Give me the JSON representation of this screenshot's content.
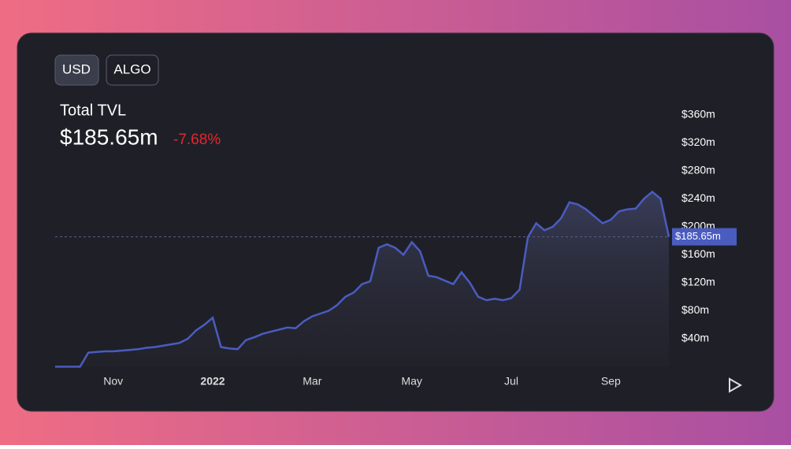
{
  "ui": {
    "buttons": [
      "USD",
      "ALGO"
    ]
  },
  "chart_data": {
    "type": "area",
    "title": "Total TVL",
    "current_value_label": "$185.65m",
    "change_label": "-7.68%",
    "categories": [
      null,
      null,
      null,
      null,
      null,
      null,
      null,
      "Nov",
      null,
      null,
      null,
      null,
      null,
      null,
      null,
      null,
      null,
      null,
      null,
      "2022",
      null,
      null,
      null,
      null,
      null,
      null,
      null,
      null,
      null,
      null,
      null,
      "Mar",
      null,
      null,
      null,
      null,
      null,
      null,
      null,
      null,
      null,
      null,
      null,
      "May",
      null,
      null,
      null,
      null,
      null,
      null,
      null,
      null,
      null,
      null,
      null,
      "Jul",
      null,
      null,
      null,
      null,
      null,
      null,
      null,
      null,
      null,
      null,
      null,
      "Sep",
      null,
      null,
      null,
      null,
      null,
      null,
      null
    ],
    "series": [
      {
        "name": "TVL",
        "color": "#4a5cc0",
        "values": [
          0,
          0,
          0,
          0,
          20,
          21,
          22,
          22,
          23,
          24,
          25,
          27,
          28,
          30,
          32,
          34,
          40,
          52,
          60,
          70,
          28,
          26,
          25,
          38,
          42,
          47,
          50,
          53,
          56,
          55,
          65,
          72,
          76,
          80,
          88,
          100,
          106,
          118,
          122,
          170,
          175,
          170,
          160,
          178,
          165,
          130,
          128,
          123,
          118,
          135,
          120,
          100,
          95,
          97,
          95,
          98,
          110,
          185,
          205,
          195,
          200,
          212,
          235,
          232,
          225,
          215,
          205,
          210,
          222,
          225,
          226,
          240,
          250,
          240,
          185.65
        ]
      }
    ],
    "ylim": [
      0,
      380
    ],
    "yticks": [
      {
        "value": 40,
        "label": "$40m"
      },
      {
        "value": 80,
        "label": "$80m"
      },
      {
        "value": 120,
        "label": "$120m"
      },
      {
        "value": 160,
        "label": "$160m"
      },
      {
        "value": 200,
        "label": "$200m"
      },
      {
        "value": 240,
        "label": "$240m"
      },
      {
        "value": 280,
        "label": "$280m"
      },
      {
        "value": 320,
        "label": "$320m"
      },
      {
        "value": 360,
        "label": "$360m"
      }
    ]
  }
}
